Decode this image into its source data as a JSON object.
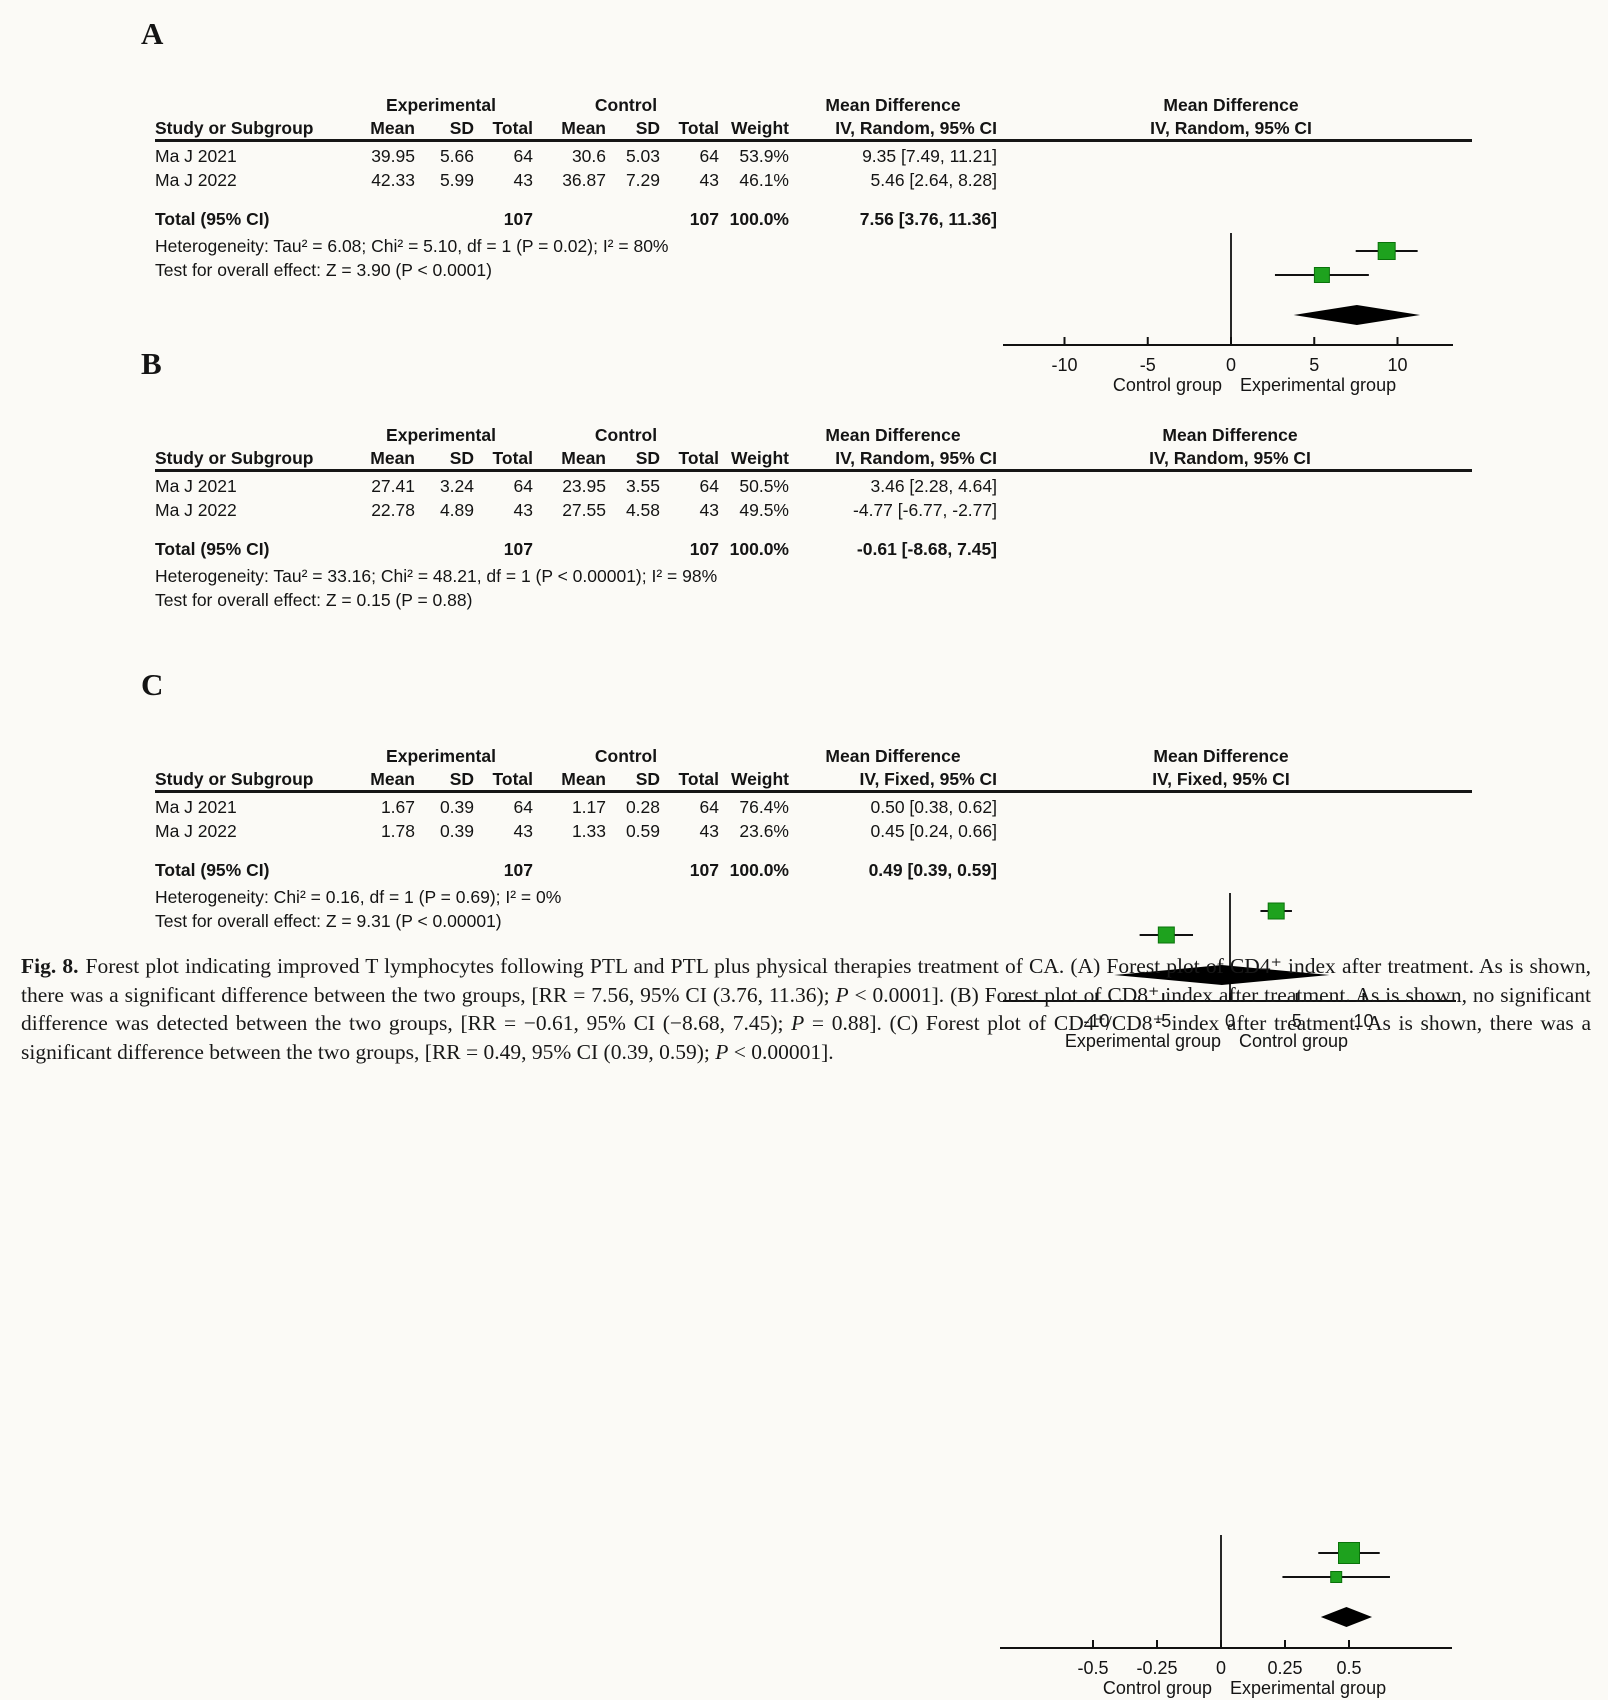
{
  "figure": {
    "panels": [
      {
        "label": "A",
        "table": {
          "group_headers": {
            "experimental": "Experimental",
            "control": "Control",
            "effect": "Mean Difference"
          },
          "col_headers": {
            "study": "Study or Subgroup",
            "mean": "Mean",
            "sd": "SD",
            "total": "Total",
            "mean2": "Mean",
            "sd2": "SD",
            "total2": "Total",
            "weight": "Weight",
            "ci": "IV, Random, 95% CI"
          },
          "rows": [
            {
              "study": "Ma J 2021",
              "mean": "39.95",
              "sd": "5.66",
              "total": "64",
              "mean2": "30.6",
              "sd2": "5.03",
              "total2": "64",
              "weight": "53.9%",
              "ci": "9.35 [7.49, 11.21]"
            },
            {
              "study": "Ma J 2022",
              "mean": "42.33",
              "sd": "5.99",
              "total": "43",
              "mean2": "36.87",
              "sd2": "7.29",
              "total2": "43",
              "weight": "46.1%",
              "ci": "5.46 [2.64, 8.28]"
            }
          ],
          "total_row": {
            "label": "Total (95% CI)",
            "total": "107",
            "total2": "107",
            "weight": "100.0%",
            "ci": "7.56 [3.76, 11.36]"
          },
          "heterogeneity": "Heterogeneity: Tau² = 6.08; Chi² = 5.10, df = 1 (P = 0.02); I² = 80%",
          "overall_effect": "Test for overall effect: Z = 3.90 (P < 0.0001)"
        },
        "plot": {
          "title1": "Mean Difference",
          "title2": "IV, Random, 95% CI"
        }
      },
      {
        "label": "B",
        "table": {
          "group_headers": {
            "experimental": "Experimental",
            "control": "Control",
            "effect": "Mean Difference"
          },
          "col_headers": {
            "study": "Study or Subgroup",
            "mean": "Mean",
            "sd": "SD",
            "total": "Total",
            "mean2": "Mean",
            "sd2": "SD",
            "total2": "Total",
            "weight": "Weight",
            "ci": "IV, Random, 95% CI"
          },
          "rows": [
            {
              "study": "Ma J 2021",
              "mean": "27.41",
              "sd": "3.24",
              "total": "64",
              "mean2": "23.95",
              "sd2": "3.55",
              "total2": "64",
              "weight": "50.5%",
              "ci": "3.46 [2.28, 4.64]"
            },
            {
              "study": "Ma J 2022",
              "mean": "22.78",
              "sd": "4.89",
              "total": "43",
              "mean2": "27.55",
              "sd2": "4.58",
              "total2": "43",
              "weight": "49.5%",
              "ci": "-4.77 [-6.77, -2.77]"
            }
          ],
          "total_row": {
            "label": "Total (95% CI)",
            "total": "107",
            "total2": "107",
            "weight": "100.0%",
            "ci": "-0.61 [-8.68, 7.45]"
          },
          "heterogeneity": "Heterogeneity: Tau² = 33.16; Chi² = 48.21, df = 1 (P < 0.00001); I² = 98%",
          "overall_effect": "Test for overall effect: Z = 0.15 (P = 0.88)"
        },
        "plot": {
          "title1": "Mean Difference",
          "title2": "IV, Random, 95% CI"
        }
      },
      {
        "label": "C",
        "table": {
          "group_headers": {
            "experimental": "Experimental",
            "control": "Control",
            "effect": "Mean Difference"
          },
          "col_headers": {
            "study": "Study or Subgroup",
            "mean": "Mean",
            "sd": "SD",
            "total": "Total",
            "mean2": "Mean",
            "sd2": "SD",
            "total2": "Total",
            "weight": "Weight",
            "ci": "IV, Fixed, 95% CI"
          },
          "rows": [
            {
              "study": "Ma J 2021",
              "mean": "1.67",
              "sd": "0.39",
              "total": "64",
              "mean2": "1.17",
              "sd2": "0.28",
              "total2": "64",
              "weight": "76.4%",
              "ci": "0.50 [0.38, 0.62]"
            },
            {
              "study": "Ma J 2022",
              "mean": "1.78",
              "sd": "0.39",
              "total": "43",
              "mean2": "1.33",
              "sd2": "0.59",
              "total2": "43",
              "weight": "23.6%",
              "ci": "0.45 [0.24, 0.66]"
            }
          ],
          "total_row": {
            "label": "Total (95% CI)",
            "total": "107",
            "total2": "107",
            "weight": "100.0%",
            "ci": "0.49 [0.39, 0.59]"
          },
          "heterogeneity": "Heterogeneity: Chi² = 0.16, df = 1 (P = 0.69); I² = 0%",
          "overall_effect": "Test for overall effect: Z = 9.31 (P < 0.00001)"
        },
        "plot": {
          "title1": "Mean Difference",
          "title2": "IV, Fixed, 95% CI"
        }
      }
    ],
    "caption": {
      "segments": [
        {
          "text": "Fig. 8.",
          "bold": true
        },
        {
          "text": "Forest plot indicating improved T lymphocytes following PTL and PTL plus physical therapies treatment of CA. (A) Forest plot of CD4⁺ index after treatment. As is shown, there was a significant difference between the two groups, [RR = 7.56, 95% CI (3.76, 11.36); "
        },
        {
          "text": "P",
          "italic": true
        },
        {
          "text": " < 0.0001]. (B) Forest plot of CD8⁺ index after treatment. As is shown, no significant difference was detected between the two groups, [RR = −0.61, 95% CI (−8.68, 7.45); "
        },
        {
          "text": "P",
          "italic": true
        },
        {
          "text": " = 0.88]. (C) Forest plot of CD4⁺/CD8⁺ index after treatment. As is shown, there was a significant difference between the two groups, [RR = 0.49, 95% CI (0.39, 0.59); "
        },
        {
          "text": "P",
          "italic": true
        },
        {
          "text": " < 0.00001]."
        }
      ]
    }
  },
  "colors": {
    "square_fill": "#1ea21e",
    "square_stroke": "#0a720a",
    "line": "#111111",
    "diamond": "#000000",
    "background": "#fbfaf6"
  },
  "chart_data": [
    {
      "type": "forest",
      "panel": "A",
      "title": "Mean Difference",
      "model": "IV, Random, 95% CI",
      "studies": [
        "Ma J 2021",
        "Ma J 2022"
      ],
      "experimental": {
        "mean": [
          39.95,
          42.33
        ],
        "sd": [
          5.66,
          5.99
        ],
        "total": [
          64,
          43
        ]
      },
      "control": {
        "mean": [
          30.6,
          36.87
        ],
        "sd": [
          5.03,
          7.29
        ],
        "total": [
          64,
          43
        ]
      },
      "weights_pct": [
        53.9,
        46.1
      ],
      "effects": [
        {
          "est": 9.35,
          "lo": 7.49,
          "hi": 11.21
        },
        {
          "est": 5.46,
          "lo": 2.64,
          "hi": 8.28
        }
      ],
      "total": {
        "est": 7.56,
        "lo": 3.76,
        "hi": 11.36,
        "n_experimental": 107,
        "n_control": 107
      },
      "heterogeneity": "Tau² = 6.08; Chi² = 5.10, df = 1 (P = 0.02); I² = 80%",
      "overall_effect": "Z = 3.90 (P < 0.0001)",
      "x_ticks": [
        -10,
        -5,
        0,
        5,
        10
      ],
      "x_tick_labels": [
        "-10",
        "-5",
        "0",
        "5",
        "10"
      ],
      "xlim": [
        -13.7,
        13.4
      ],
      "xlabel_left": "Control group",
      "xlabel_right": "Experimental group"
    },
    {
      "type": "forest",
      "panel": "B",
      "title": "Mean Difference",
      "model": "IV, Random, 95% CI",
      "studies": [
        "Ma J 2021",
        "Ma J 2022"
      ],
      "experimental": {
        "mean": [
          27.41,
          22.78
        ],
        "sd": [
          3.24,
          4.89
        ],
        "total": [
          64,
          43
        ]
      },
      "control": {
        "mean": [
          23.95,
          27.55
        ],
        "sd": [
          3.55,
          4.58
        ],
        "total": [
          64,
          43
        ]
      },
      "weights_pct": [
        50.5,
        49.5
      ],
      "effects": [
        {
          "est": 3.46,
          "lo": 2.28,
          "hi": 4.64
        },
        {
          "est": -4.77,
          "lo": -6.77,
          "hi": -2.77
        }
      ],
      "total": {
        "est": -0.61,
        "lo": -8.68,
        "hi": 7.45,
        "n_experimental": 107,
        "n_control": 107
      },
      "heterogeneity": "Tau² = 33.16; Chi² = 48.21, df = 1 (P < 0.00001); I² = 98%",
      "overall_effect": "Z = 0.15 (P = 0.88)",
      "x_ticks": [
        -10,
        -5,
        0,
        5,
        10
      ],
      "x_tick_labels": [
        "-10",
        "-5",
        "0",
        "5",
        "10"
      ],
      "xlim": [
        -17,
        16.9
      ],
      "xlabel_left": "Experimental group",
      "xlabel_right": "Control group"
    },
    {
      "type": "forest",
      "panel": "C",
      "title": "Mean Difference",
      "model": "IV, Fixed, 95% CI",
      "studies": [
        "Ma J 2021",
        "Ma J 2022"
      ],
      "experimental": {
        "mean": [
          1.67,
          1.78
        ],
        "sd": [
          0.39,
          0.39
        ],
        "total": [
          64,
          43
        ]
      },
      "control": {
        "mean": [
          1.17,
          1.33
        ],
        "sd": [
          0.28,
          0.59
        ],
        "total": [
          64,
          43
        ]
      },
      "weights_pct": [
        76.4,
        23.6
      ],
      "effects": [
        {
          "est": 0.5,
          "lo": 0.38,
          "hi": 0.62
        },
        {
          "est": 0.45,
          "lo": 0.24,
          "hi": 0.66
        }
      ],
      "total": {
        "est": 0.49,
        "lo": 0.39,
        "hi": 0.59,
        "n_experimental": 107,
        "n_control": 107
      },
      "heterogeneity": "Chi² = 0.16, df = 1 (P = 0.69); I² = 0%",
      "overall_effect": "Z = 9.31 (P < 0.00001)",
      "x_ticks": [
        -0.5,
        -0.25,
        0,
        0.25,
        0.5
      ],
      "x_tick_labels": [
        "-0.5",
        "-0.25",
        "0",
        "0.25",
        "0.5"
      ],
      "xlim": [
        -0.86,
        0.9
      ],
      "xlabel_left": "Control group",
      "xlabel_right": "Experimental group"
    }
  ]
}
